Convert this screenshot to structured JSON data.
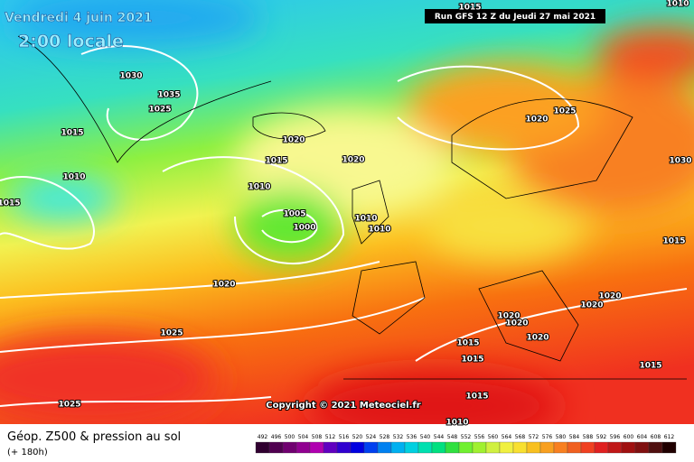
{
  "header": {
    "date": "Vendredi 4 juin 2021",
    "time": "2:00 locale",
    "run": "Run GFS 12 Z du Jeudi 27 mai 2021"
  },
  "copyright": "Copyright © 2021 Meteociel.fr",
  "footer": {
    "title": "Géop. Z500 & pression au sol",
    "lead": "(+ 180h)"
  },
  "isobar_labels": [
    "1030",
    "1035",
    "1025",
    "1015",
    "1010",
    "1015",
    "1020",
    "1015",
    "1020",
    "1010",
    "1005",
    "1000",
    "1010",
    "1010",
    "1020",
    "1025",
    "1025",
    "1015",
    "1025",
    "1020",
    "1030",
    "1015",
    "1020",
    "1020",
    "1020",
    "1020",
    "1020",
    "1015",
    "1015",
    "1015",
    "1015",
    "1010",
    "1010"
  ],
  "scale": [
    492,
    496,
    500,
    504,
    508,
    512,
    516,
    520,
    524,
    528,
    532,
    536,
    540,
    544,
    548,
    552,
    556,
    560,
    564,
    568,
    572,
    576,
    580,
    584,
    588,
    592,
    596,
    600,
    604,
    608,
    612
  ]
}
